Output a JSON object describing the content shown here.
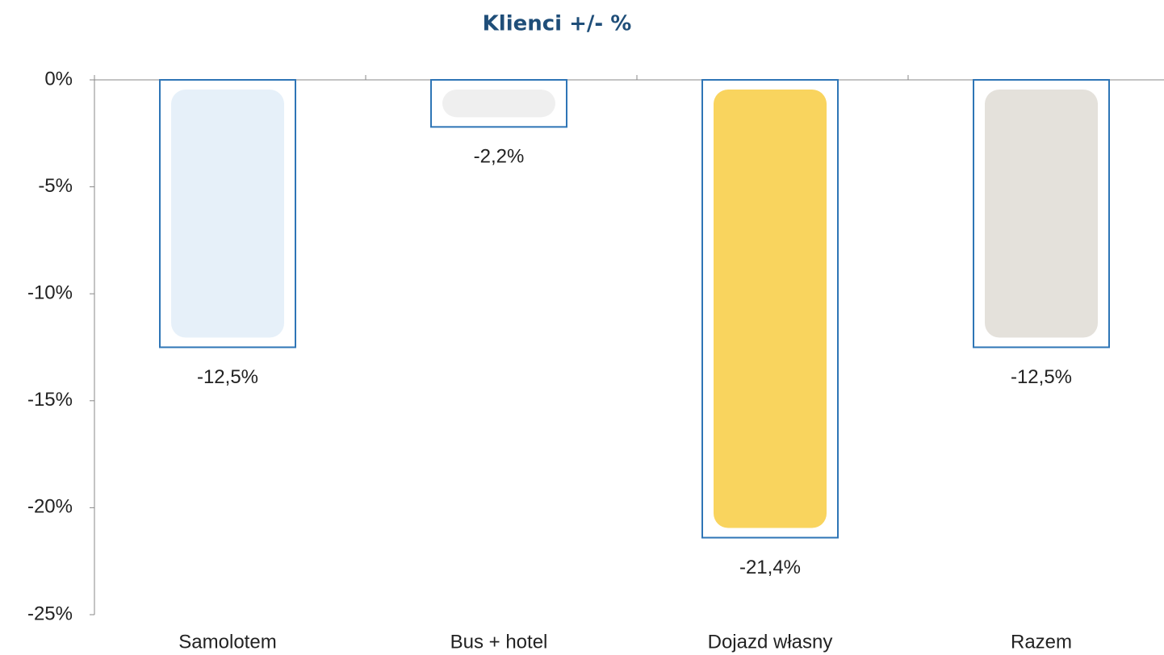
{
  "chart_data": {
    "type": "bar",
    "title": "Klienci +/- %",
    "categories": [
      "Samolotem",
      "Bus + hotel",
      "Dojazd własny",
      "Razem"
    ],
    "values": [
      -12.5,
      -2.2,
      -21.4,
      -12.5
    ],
    "value_labels": [
      "-12,5%",
      "-2,2%",
      "-21,4%",
      "-12,5%"
    ],
    "color": "#2e75b6",
    "ylim": [
      -25,
      0
    ],
    "yticks": [
      {
        "value": 0,
        "label": "0%"
      },
      {
        "value": -5,
        "label": "-5%"
      },
      {
        "value": -10,
        "label": "-10%"
      },
      {
        "value": -15,
        "label": "-15%"
      },
      {
        "value": -20,
        "label": "-20%"
      },
      {
        "value": -25,
        "label": "-25%"
      }
    ],
    "grid": false
  }
}
